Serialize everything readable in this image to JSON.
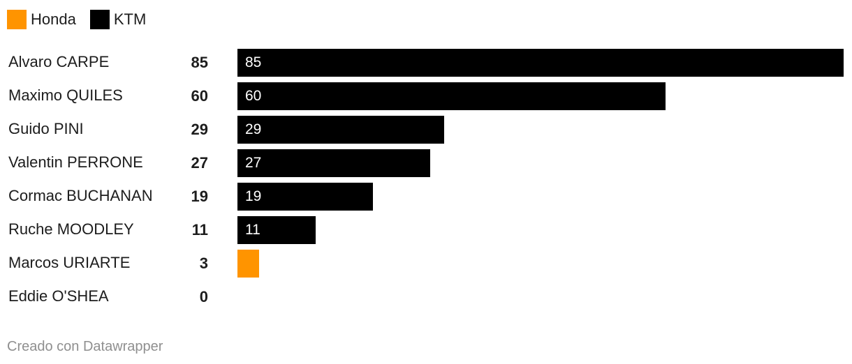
{
  "chart_data": {
    "type": "bar",
    "orientation": "horizontal",
    "title": "",
    "xlabel": "",
    "ylabel": "",
    "xlim": [
      0,
      85
    ],
    "legend": [
      {
        "name": "Honda",
        "color": "#ff9400"
      },
      {
        "name": "KTM",
        "color": "#000000"
      }
    ],
    "categories": [
      "Alvaro CARPE",
      "Maximo QUILES",
      "Guido PINI",
      "Valentin PERRONE",
      "Cormac BUCHANAN",
      "Ruche MOODLEY",
      "Marcos URIARTE",
      "Eddie O'SHEA"
    ],
    "values": [
      85,
      60,
      29,
      27,
      19,
      11,
      3,
      0
    ],
    "manufacturers": [
      "KTM",
      "KTM",
      "KTM",
      "KTM",
      "KTM",
      "KTM",
      "Honda",
      "KTM"
    ],
    "totals": [
      "85",
      "60",
      "29",
      "27",
      "19",
      "11",
      "3",
      "0"
    ],
    "bar_labels": [
      "85",
      "60",
      "29",
      "27",
      "19",
      "11",
      "",
      ""
    ]
  },
  "footer": {
    "credit": "Creado con Datawrapper"
  }
}
